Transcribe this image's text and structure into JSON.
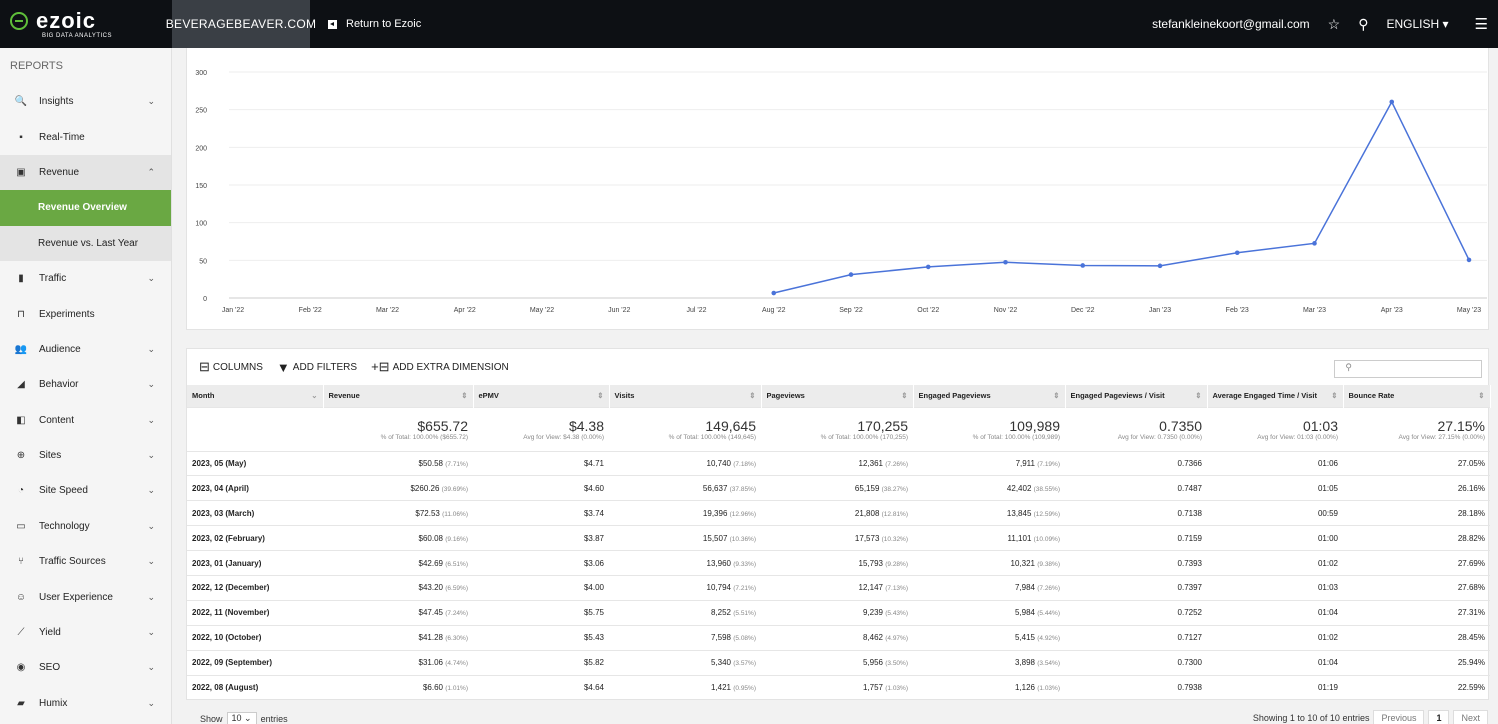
{
  "topbar": {
    "logo_name": "ezoic",
    "logo_sub": "BIG DATA ANALYTICS",
    "site": "BEVERAGEBEAVER.COM",
    "return_label": "Return to Ezoic",
    "email": "stefankleinekoort@gmail.com",
    "language": "ENGLISH ▾"
  },
  "sidebar": {
    "heading": "REPORTS",
    "items": [
      {
        "label": "Insights",
        "icon": "search-icon",
        "glyph": "🔍",
        "chev": "⌄"
      },
      {
        "label": "Real-Time",
        "icon": "video-icon",
        "glyph": "▪",
        "chev": ""
      },
      {
        "label": "Revenue",
        "icon": "money-icon",
        "glyph": "▣",
        "chev": "⌃"
      },
      {
        "label": "Traffic",
        "icon": "traffic-icon",
        "glyph": "▮",
        "chev": "⌄"
      },
      {
        "label": "Experiments",
        "icon": "flask-icon",
        "glyph": "⊓",
        "chev": ""
      },
      {
        "label": "Audience",
        "icon": "people-icon",
        "glyph": "👥",
        "chev": "⌄"
      },
      {
        "label": "Behavior",
        "icon": "behavior-icon",
        "glyph": "◢",
        "chev": "⌄"
      },
      {
        "label": "Content",
        "icon": "content-icon",
        "glyph": "◧",
        "chev": "⌄"
      },
      {
        "label": "Sites",
        "icon": "globe-icon",
        "glyph": "⊕",
        "chev": "⌄"
      },
      {
        "label": "Site Speed",
        "icon": "speed-icon",
        "glyph": "◔",
        "chev": "⌄"
      },
      {
        "label": "Technology",
        "icon": "device-icon",
        "glyph": "▭",
        "chev": "⌄"
      },
      {
        "label": "Traffic Sources",
        "icon": "fork-icon",
        "glyph": "⑂",
        "chev": "⌄"
      },
      {
        "label": "User Experience",
        "icon": "smile-icon",
        "glyph": "☺",
        "chev": "⌄"
      },
      {
        "label": "Yield",
        "icon": "chart-line-icon",
        "glyph": "⟋",
        "chev": "⌄"
      },
      {
        "label": "SEO",
        "icon": "seo-icon",
        "glyph": "◉",
        "chev": "⌄"
      },
      {
        "label": "Humix",
        "icon": "humix-icon",
        "glyph": "▰",
        "chev": "⌄"
      }
    ],
    "subitems": [
      {
        "label": "Revenue Overview",
        "active": true
      },
      {
        "label": "Revenue vs. Last Year",
        "active": false
      }
    ]
  },
  "chart_data": {
    "type": "line",
    "x": [
      "Jan '22",
      "Feb '22",
      "Mar '22",
      "Apr '22",
      "May '22",
      "Jun '22",
      "Jul '22",
      "Aug '22",
      "Sep '22",
      "Oct '22",
      "Nov '22",
      "Dec '22",
      "Jan '23",
      "Feb '23",
      "Mar '23",
      "Apr '23",
      "May '23"
    ],
    "series": [
      {
        "values": [
          null,
          null,
          null,
          null,
          null,
          null,
          null,
          6.6,
          31.06,
          41.28,
          47.45,
          43.2,
          42.69,
          60.08,
          72.53,
          260.26,
          50.58
        ],
        "color": "#4a73d9"
      }
    ],
    "yticks": [
      0,
      50,
      100,
      150,
      200,
      250,
      300
    ],
    "ylim": [
      0,
      300
    ],
    "grid": true
  },
  "toolbar": {
    "columns": "COLUMNS",
    "filters": "ADD FILTERS",
    "dimension": "ADD EXTRA DIMENSION"
  },
  "table": {
    "headers": [
      "Month",
      "Revenue",
      "ePMV",
      "Visits",
      "Pageviews",
      "Engaged Pageviews",
      "Engaged Pageviews / Visit",
      "Average Engaged Time / Visit",
      "Bounce Rate"
    ],
    "totals": [
      [
        "",
        ""
      ],
      [
        "$655.72",
        "% of Total: 100.00% ($655.72)"
      ],
      [
        "$4.38",
        "Avg for View: $4.38 (0.00%)"
      ],
      [
        "149,645",
        "% of Total: 100.00% (149,645)"
      ],
      [
        "170,255",
        "% of Total: 100.00% (170,255)"
      ],
      [
        "109,989",
        "% of Total: 100.00% (109,989)"
      ],
      [
        "0.7350",
        "Avg for View: 0.7350 (0.00%)"
      ],
      [
        "01:03",
        "Avg for View: 01:03 (0.00%)"
      ],
      [
        "27.15%",
        "Avg for View: 27.15% (0.00%)"
      ]
    ],
    "rows": [
      [
        [
          "2023, 05 (May)",
          ""
        ],
        [
          "$50.58",
          "(7.71%)"
        ],
        [
          "$4.71",
          ""
        ],
        [
          "10,740",
          "(7.18%)"
        ],
        [
          "12,361",
          "(7.26%)"
        ],
        [
          "7,911",
          "(7.19%)"
        ],
        [
          "0.7366",
          ""
        ],
        [
          "01:06",
          ""
        ],
        [
          "27.05%",
          ""
        ]
      ],
      [
        [
          "2023, 04 (April)",
          ""
        ],
        [
          "$260.26",
          "(39.69%)"
        ],
        [
          "$4.60",
          ""
        ],
        [
          "56,637",
          "(37.85%)"
        ],
        [
          "65,159",
          "(38.27%)"
        ],
        [
          "42,402",
          "(38.55%)"
        ],
        [
          "0.7487",
          ""
        ],
        [
          "01:05",
          ""
        ],
        [
          "26.16%",
          ""
        ]
      ],
      [
        [
          "2023, 03 (March)",
          ""
        ],
        [
          "$72.53",
          "(11.06%)"
        ],
        [
          "$3.74",
          ""
        ],
        [
          "19,396",
          "(12.96%)"
        ],
        [
          "21,808",
          "(12.81%)"
        ],
        [
          "13,845",
          "(12.59%)"
        ],
        [
          "0.7138",
          ""
        ],
        [
          "00:59",
          ""
        ],
        [
          "28.18%",
          ""
        ]
      ],
      [
        [
          "2023, 02 (February)",
          ""
        ],
        [
          "$60.08",
          "(9.16%)"
        ],
        [
          "$3.87",
          ""
        ],
        [
          "15,507",
          "(10.36%)"
        ],
        [
          "17,573",
          "(10.32%)"
        ],
        [
          "11,101",
          "(10.09%)"
        ],
        [
          "0.7159",
          ""
        ],
        [
          "01:00",
          ""
        ],
        [
          "28.82%",
          ""
        ]
      ],
      [
        [
          "2023, 01 (January)",
          ""
        ],
        [
          "$42.69",
          "(6.51%)"
        ],
        [
          "$3.06",
          ""
        ],
        [
          "13,960",
          "(9.33%)"
        ],
        [
          "15,793",
          "(9.28%)"
        ],
        [
          "10,321",
          "(9.38%)"
        ],
        [
          "0.7393",
          ""
        ],
        [
          "01:02",
          ""
        ],
        [
          "27.69%",
          ""
        ]
      ],
      [
        [
          "2022, 12 (December)",
          ""
        ],
        [
          "$43.20",
          "(6.59%)"
        ],
        [
          "$4.00",
          ""
        ],
        [
          "10,794",
          "(7.21%)"
        ],
        [
          "12,147",
          "(7.13%)"
        ],
        [
          "7,984",
          "(7.26%)"
        ],
        [
          "0.7397",
          ""
        ],
        [
          "01:03",
          ""
        ],
        [
          "27.68%",
          ""
        ]
      ],
      [
        [
          "2022, 11 (November)",
          ""
        ],
        [
          "$47.45",
          "(7.24%)"
        ],
        [
          "$5.75",
          ""
        ],
        [
          "8,252",
          "(5.51%)"
        ],
        [
          "9,239",
          "(5.43%)"
        ],
        [
          "5,984",
          "(5.44%)"
        ],
        [
          "0.7252",
          ""
        ],
        [
          "01:04",
          ""
        ],
        [
          "27.31%",
          ""
        ]
      ],
      [
        [
          "2022, 10 (October)",
          ""
        ],
        [
          "$41.28",
          "(6.30%)"
        ],
        [
          "$5.43",
          ""
        ],
        [
          "7,598",
          "(5.08%)"
        ],
        [
          "8,462",
          "(4.97%)"
        ],
        [
          "5,415",
          "(4.92%)"
        ],
        [
          "0.7127",
          ""
        ],
        [
          "01:02",
          ""
        ],
        [
          "28.45%",
          ""
        ]
      ],
      [
        [
          "2022, 09 (September)",
          ""
        ],
        [
          "$31.06",
          "(4.74%)"
        ],
        [
          "$5.82",
          ""
        ],
        [
          "5,340",
          "(3.57%)"
        ],
        [
          "5,956",
          "(3.50%)"
        ],
        [
          "3,898",
          "(3.54%)"
        ],
        [
          "0.7300",
          ""
        ],
        [
          "01:04",
          ""
        ],
        [
          "25.94%",
          ""
        ]
      ],
      [
        [
          "2022, 08 (August)",
          ""
        ],
        [
          "$6.60",
          "(1.01%)"
        ],
        [
          "$4.64",
          ""
        ],
        [
          "1,421",
          "(0.95%)"
        ],
        [
          "1,757",
          "(1.03%)"
        ],
        [
          "1,126",
          "(1.03%)"
        ],
        [
          "0.7938",
          ""
        ],
        [
          "01:19",
          ""
        ],
        [
          "22.59%",
          ""
        ]
      ]
    ]
  },
  "footer": {
    "show": "Show",
    "entries_value": "10",
    "entries": "entries",
    "showing": "Showing 1 to 10 of 10 entries",
    "previous": "Previous",
    "page": "1",
    "next": "Next"
  }
}
